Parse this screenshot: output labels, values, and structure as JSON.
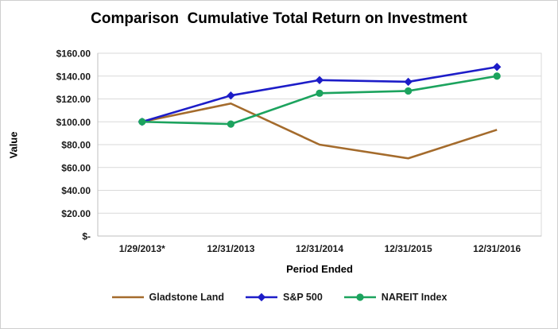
{
  "chart_data": {
    "type": "line",
    "title": "Comparison  Cumulative Total Return on Investment",
    "xlabel": "Period Ended",
    "ylabel": "Value",
    "categories": [
      "1/29/2013*",
      "12/31/2013",
      "12/31/2014",
      "12/31/2015",
      "12/31/2016"
    ],
    "series": [
      {
        "name": "Gladstone Land",
        "color": "#A46B2C",
        "marker": "none",
        "values": [
          100,
          116,
          80,
          68,
          93
        ]
      },
      {
        "name": "S&P 500",
        "color": "#1D1DC8",
        "marker": "diamond",
        "values": [
          100,
          123,
          136.5,
          135,
          148
        ]
      },
      {
        "name": "NAREIT Index",
        "color": "#1CA35E",
        "marker": "circle",
        "values": [
          100,
          98,
          125,
          127,
          140
        ]
      }
    ],
    "ylim": [
      0,
      160
    ],
    "y_tick_step": 20,
    "y_tick_labels": [
      "$-",
      "$20.00",
      "$40.00",
      "$60.00",
      "$80.00",
      "$100.00",
      "$120.00",
      "$140.00",
      "$160.00"
    ],
    "grid": "horizontal",
    "legend_position": "bottom",
    "colors": {
      "gridline": "#D9D9D9",
      "axis": "#BFBFBF",
      "text": "#1A1A1A"
    }
  }
}
